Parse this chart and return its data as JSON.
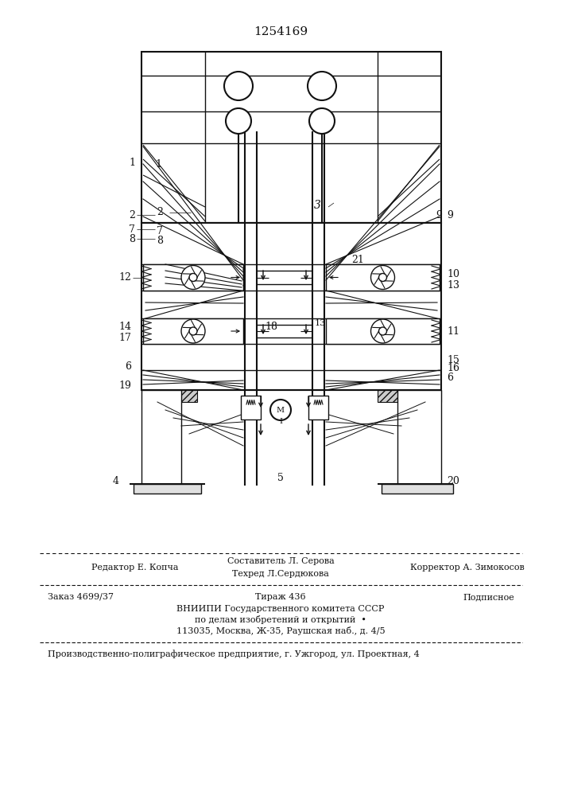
{
  "patent_number": "1254169",
  "bg_color": "#ffffff",
  "line_color": "#111111",
  "fig_width": 7.07,
  "fig_height": 10.0,
  "footer_line1_left": "Редактор Е. Копча",
  "footer_line1_center_top": "Составитель Л. Серова",
  "footer_line1_center_bot": "Техред Л.Сердюкова",
  "footer_line1_right": "Корректор А. Зимокосов",
  "footer_line2_left": "Заказ 4699/37",
  "footer_line2_center": "Тираж 436",
  "footer_line2_right": "Подписное",
  "footer_line3": "ВНИИПИ Государственного комитета СССР",
  "footer_line4": "по делам изобретений и открытий  •",
  "footer_line5": "113035, Москва, Ж-35, Раушская наб., д. 4/5",
  "footer_line6": "Производственно-полиграфическое предприятие, г. Ужгород, ул. Проектная, 4"
}
